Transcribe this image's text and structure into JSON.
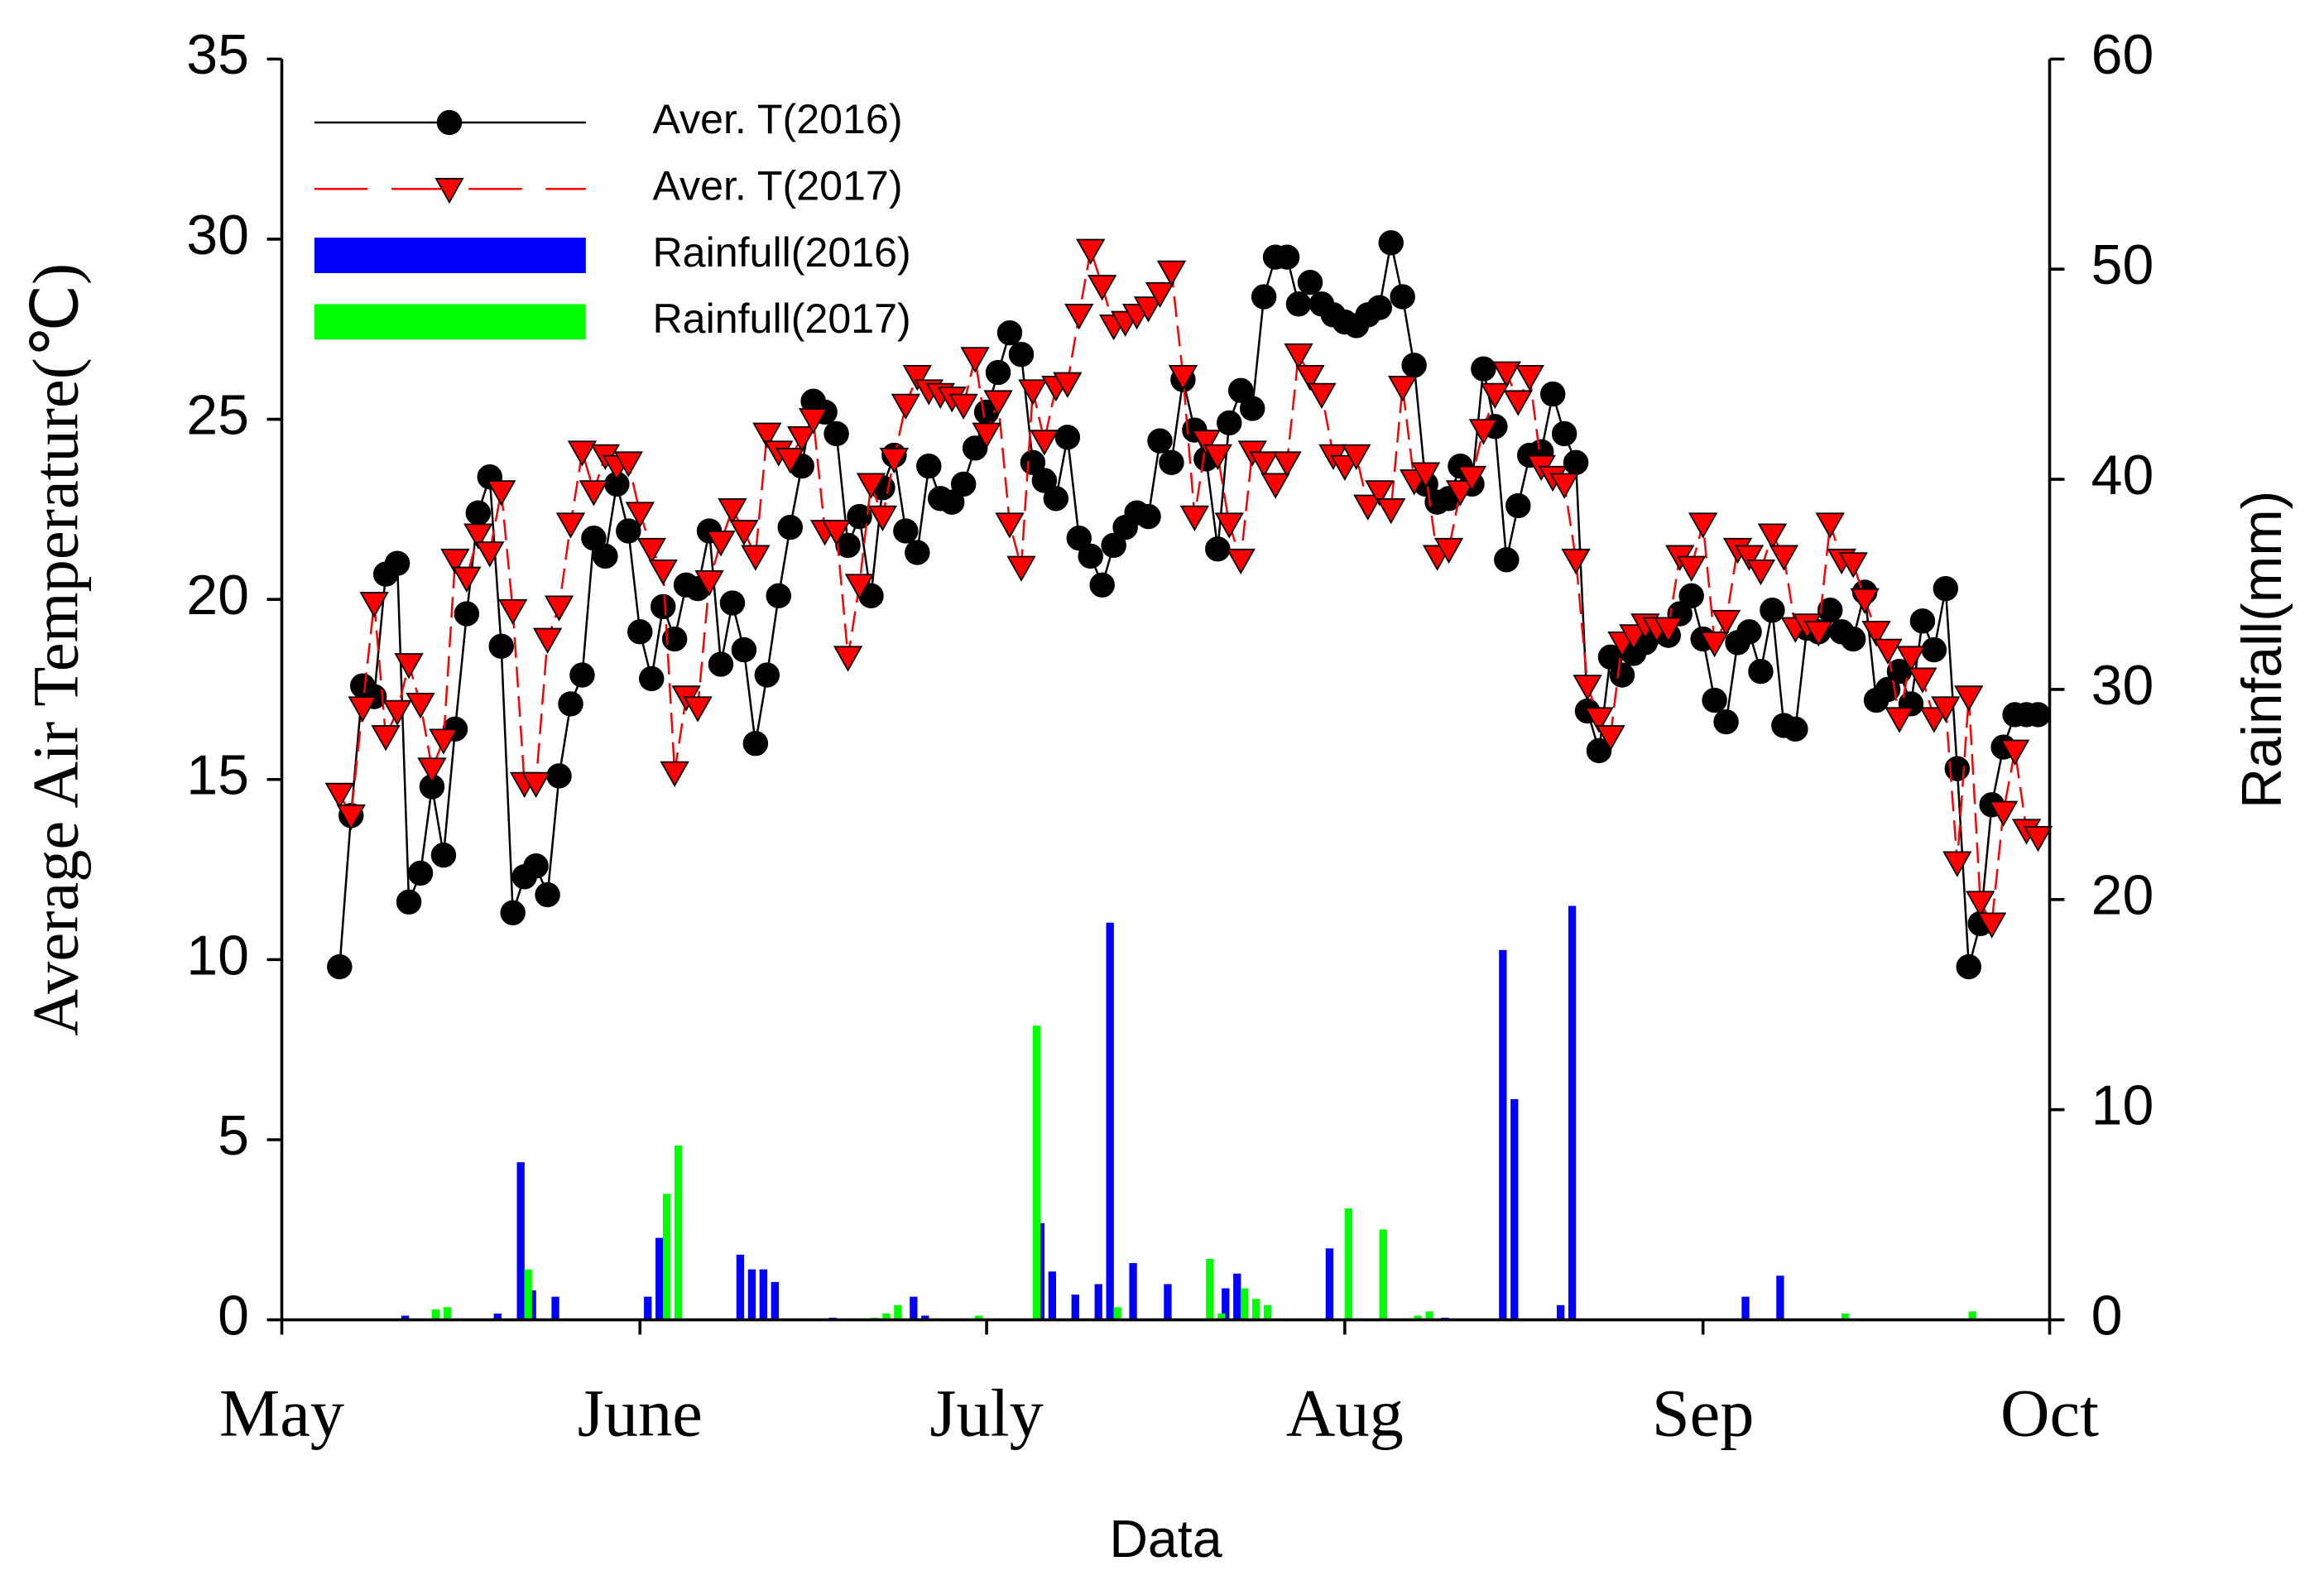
{
  "chart_data": {
    "type": "line",
    "xlabel": "Data",
    "ylabel": "Average Air Temperature(℃)",
    "y2label": "Rainfall(mm)",
    "legend": "upper left",
    "xlim": [
      0,
      153
    ],
    "xticks": [
      {
        "value": 0,
        "label": "May"
      },
      {
        "value": 31,
        "label": "June"
      },
      {
        "value": 61,
        "label": "July"
      },
      {
        "value": 92,
        "label": "Aug"
      },
      {
        "value": 123,
        "label": "Sep"
      },
      {
        "value": 153,
        "label": "Oct"
      }
    ],
    "ylim": [
      0,
      35
    ],
    "yticks": [
      0,
      5,
      10,
      15,
      20,
      25,
      30,
      35
    ],
    "y2lim": [
      0,
      60
    ],
    "y2ticks": [
      0,
      10,
      20,
      30,
      40,
      50,
      60
    ],
    "x": [
      5,
      6,
      7,
      8,
      9,
      10,
      11,
      12,
      13,
      14,
      15,
      16,
      17,
      18,
      19,
      20,
      21,
      22,
      23,
      24,
      25,
      26,
      27,
      28,
      29,
      30,
      31,
      32,
      33,
      34,
      35,
      36,
      37,
      38,
      39,
      40,
      41,
      42,
      43,
      44,
      45,
      46,
      47,
      48,
      49,
      50,
      51,
      52,
      53,
      54,
      55,
      56,
      57,
      58,
      59,
      60,
      61,
      62,
      63,
      64,
      65,
      66,
      67,
      68,
      69,
      70,
      71,
      72,
      73,
      74,
      75,
      76,
      77,
      78,
      79,
      80,
      81,
      82,
      83,
      84,
      85,
      86,
      87,
      88,
      89,
      90,
      91,
      92,
      93,
      94,
      95,
      96,
      97,
      98,
      99,
      100,
      101,
      102,
      103,
      104,
      105,
      106,
      107,
      108,
      109,
      110,
      111,
      112,
      113,
      114,
      115,
      116,
      117,
      118,
      119,
      120,
      121,
      122,
      123,
      124,
      125,
      126,
      127,
      128,
      129,
      130,
      131,
      132,
      133,
      134,
      135,
      136,
      137,
      138,
      139,
      140,
      141,
      142,
      143,
      144,
      145,
      146,
      147,
      148,
      149,
      150,
      151,
      152
    ],
    "series": [
      {
        "name": "Aver. T(2016)",
        "color": "#000000",
        "type": "line",
        "marker": "circle",
        "linestyle": "solid",
        "markerfill": "#000000",
        "values": [
          9.8,
          14.0,
          17.6,
          17.3,
          20.7,
          21.0,
          11.6,
          12.4,
          14.8,
          12.9,
          16.4,
          19.6,
          22.4,
          23.4,
          18.7,
          11.3,
          12.3,
          12.6,
          11.8,
          15.1,
          17.1,
          17.9,
          21.7,
          21.2,
          23.2,
          21.9,
          19.1,
          17.8,
          19.8,
          18.9,
          20.4,
          20.3,
          21.9,
          18.2,
          19.9,
          18.6,
          16.0,
          17.9,
          20.1,
          22.0,
          23.7,
          25.5,
          25.2,
          24.6,
          21.5,
          22.3,
          20.1,
          23.1,
          24.0,
          21.9,
          21.3,
          23.7,
          22.8,
          22.7,
          23.2,
          24.2,
          25.2,
          26.3,
          27.4,
          26.8,
          23.8,
          23.3,
          22.8,
          24.5,
          21.7,
          21.2,
          20.4,
          21.5,
          22.0,
          22.4,
          22.3,
          24.4,
          23.8,
          26.1,
          24.7,
          23.9,
          21.4,
          24.9,
          25.8,
          25.3,
          28.4,
          29.5,
          29.5,
          28.2,
          28.8,
          28.2,
          27.9,
          27.7,
          27.6,
          27.9,
          28.1,
          29.9,
          28.4,
          26.5,
          23.2,
          22.7,
          22.8,
          23.7,
          23.2,
          26.4,
          24.8,
          21.1,
          22.6,
          24.0,
          24.1,
          25.7,
          24.6,
          23.8,
          16.9,
          15.8,
          18.4,
          17.9,
          18.5,
          18.8,
          19.1,
          19.0,
          19.6,
          20.1,
          18.9,
          17.2,
          16.6,
          18.8,
          19.1,
          18.0,
          19.7,
          16.5,
          16.4,
          19.2,
          19.1,
          19.7,
          19.1,
          18.9,
          20.2,
          17.2,
          17.5,
          18.0,
          17.1,
          19.4,
          18.6,
          20.3,
          15.3,
          9.8,
          11.0,
          14.3,
          15.9,
          16.8,
          16.8,
          16.8
        ]
      },
      {
        "name": "Aver. T(2017)",
        "color": "#ff0000",
        "type": "line",
        "marker": "triangle-down",
        "linestyle": "dashed",
        "markerfill": "#ff0000",
        "values": [
          14.6,
          14.0,
          17.0,
          19.9,
          16.2,
          16.9,
          18.2,
          17.1,
          15.3,
          16.1,
          21.1,
          20.6,
          21.8,
          21.3,
          23.0,
          19.7,
          14.9,
          14.9,
          18.9,
          19.8,
          22.1,
          24.1,
          23.0,
          24.0,
          23.7,
          23.8,
          22.4,
          21.4,
          20.8,
          15.2,
          17.3,
          17.0,
          20.5,
          21.6,
          22.5,
          21.9,
          21.2,
          24.6,
          24.1,
          23.9,
          24.5,
          25.0,
          21.9,
          21.9,
          18.4,
          20.4,
          23.2,
          22.3,
          23.9,
          25.4,
          26.2,
          25.8,
          25.7,
          25.6,
          25.4,
          26.7,
          24.6,
          25.5,
          22.1,
          20.9,
          25.8,
          24.4,
          25.9,
          26.0,
          27.9,
          29.7,
          28.7,
          27.6,
          27.7,
          27.9,
          28.1,
          28.5,
          29.1,
          26.2,
          22.3,
          24.4,
          24.0,
          22.1,
          21.1,
          24.1,
          23.8,
          23.2,
          23.8,
          26.8,
          26.2,
          25.7,
          24.0,
          23.7,
          24.0,
          22.6,
          23.0,
          22.5,
          25.9,
          23.3,
          23.5,
          21.2,
          21.4,
          23.0,
          23.4,
          24.7,
          25.7,
          26.3,
          25.5,
          26.2,
          23.7,
          23.4,
          23.2,
          21.1,
          17.6,
          16.7,
          16.2,
          18.8,
          19.0,
          19.3,
          19.2,
          19.2,
          21.2,
          20.9,
          22.1,
          18.8,
          19.4,
          21.4,
          21.2,
          20.8,
          21.8,
          21.2,
          19.2,
          19.3,
          19.1,
          22.1,
          21.1,
          21.0,
          20.0,
          19.1,
          18.6,
          16.7,
          18.4,
          17.8,
          16.7,
          17.0,
          12.7,
          17.3,
          11.6,
          11.0,
          14.1,
          15.8,
          13.6,
          13.4
        ]
      },
      {
        "name": "Rainfull(2016)",
        "color": "#0000ff",
        "type": "bar",
        "axis": "y2",
        "x": [
          11,
          19,
          21,
          22,
          24,
          32,
          33,
          40,
          41,
          42,
          43,
          48,
          55,
          56,
          66,
          67,
          69,
          71,
          72,
          74,
          77,
          82,
          83,
          91,
          101,
          106,
          107,
          111,
          112,
          127,
          130
        ],
        "values": [
          0.2,
          0.3,
          7.5,
          1.4,
          1.1,
          1.1,
          3.9,
          3.1,
          2.4,
          2.4,
          1.8,
          0.1,
          1.1,
          0.2,
          4.6,
          2.3,
          1.2,
          1.7,
          18.9,
          2.7,
          1.7,
          1.5,
          2.2,
          3.4,
          0.1,
          17.6,
          10.5,
          0.7,
          19.7,
          1.1,
          2.1
        ]
      },
      {
        "name": "Rainfull(2017)",
        "color": "#00ff00",
        "type": "bar",
        "axis": "y2",
        "x": [
          13,
          14,
          21,
          33,
          34,
          51,
          52,
          53,
          60,
          65,
          72,
          80,
          81,
          83,
          84,
          85,
          92,
          95,
          98,
          99,
          135,
          146
        ],
        "values": [
          0.5,
          0.6,
          2.4,
          6.0,
          8.3,
          0.1,
          0.3,
          0.7,
          0.2,
          14.0,
          0.6,
          2.9,
          0.3,
          1.5,
          1.0,
          0.7,
          5.3,
          4.3,
          0.2,
          0.4,
          0.3,
          0.4
        ]
      }
    ]
  }
}
